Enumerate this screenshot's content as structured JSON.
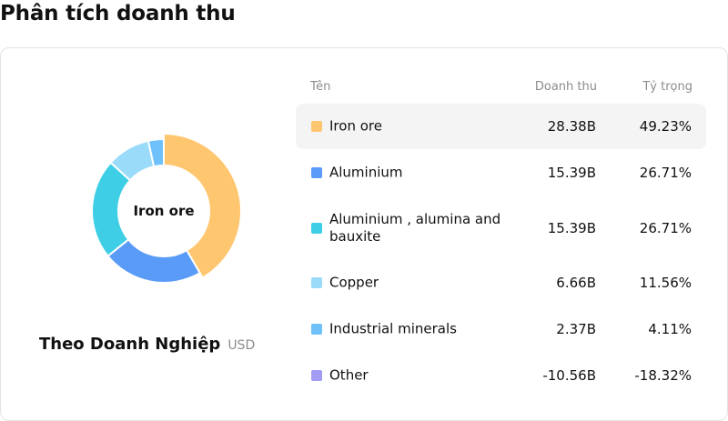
{
  "title": "Phân tích doanh thu",
  "chart": {
    "center_label": "Iron ore",
    "caption": "Theo Doanh Nghiệp",
    "unit": "USD"
  },
  "table": {
    "headers": {
      "name": "Tên",
      "revenue": "Doanh thu",
      "share": "Tỷ trọng"
    },
    "rows": [
      {
        "name": "Iron ore",
        "revenue": "28.38B",
        "share": "49.23%",
        "color": "#FFC670"
      },
      {
        "name": "Aluminium",
        "revenue": "15.39B",
        "share": "26.71%",
        "color": "#5B9BF8"
      },
      {
        "name": "Aluminium , alumina and bauxite",
        "revenue": "15.39B",
        "share": "26.71%",
        "color": "#3ECFE6"
      },
      {
        "name": "Copper",
        "revenue": "6.66B",
        "share": "11.56%",
        "color": "#9ADBFA"
      },
      {
        "name": "Industrial minerals",
        "revenue": "2.37B",
        "share": "4.11%",
        "color": "#6EC1FA"
      },
      {
        "name": "Other",
        "revenue": "-10.56B",
        "share": "-18.32%",
        "color": "#A29CF5"
      }
    ]
  },
  "chart_data": {
    "type": "pie",
    "categories": [
      "Iron ore",
      "Aluminium",
      "Aluminium , alumina and bauxite",
      "Copper",
      "Industrial minerals",
      "Other"
    ],
    "values": [
      28.38,
      15.39,
      15.39,
      6.66,
      2.37,
      -10.56
    ],
    "shares_pct": [
      49.23,
      26.71,
      26.71,
      11.56,
      4.11,
      -18.32
    ],
    "unit": "USD",
    "active_slice": "Iron ore",
    "colors": [
      "#FFC670",
      "#5B9BF8",
      "#3ECFE6",
      "#9ADBFA",
      "#6EC1FA",
      "#A29CF5"
    ]
  }
}
